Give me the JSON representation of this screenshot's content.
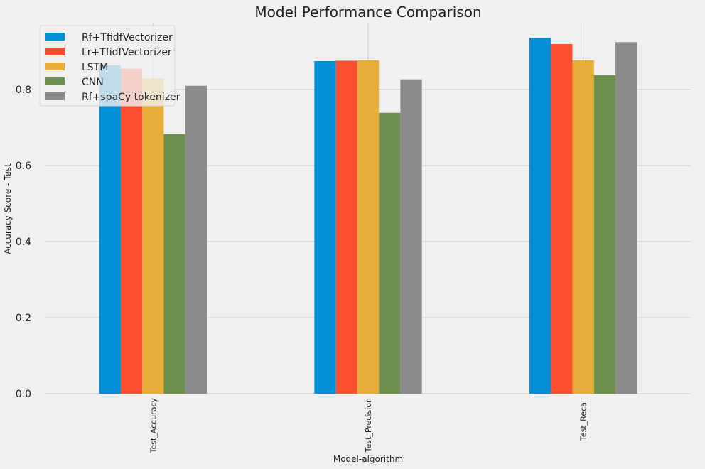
{
  "chart_data": {
    "type": "bar",
    "title": "Model Performance Comparison",
    "xlabel": "Model-algorithm",
    "ylabel": "Accuracy Score - Test",
    "categories": [
      "Test_Accuracy",
      "Test_Precision",
      "Test_Recall"
    ],
    "series": [
      {
        "name": "Rf+TfidfVectorizer",
        "color": "#008fd5",
        "values": [
          0.864,
          0.875,
          0.936
        ]
      },
      {
        "name": "Lr+TfidfVectorizer",
        "color": "#fc4f30",
        "values": [
          0.855,
          0.876,
          0.92
        ]
      },
      {
        "name": "LSTM",
        "color": "#e5ae38",
        "values": [
          0.83,
          0.877,
          0.877
        ]
      },
      {
        "name": "CNN",
        "color": "#6d904f",
        "values": [
          0.683,
          0.739,
          0.838
        ]
      },
      {
        "name": "Rf+spaCy tokenizer",
        "color": "#8b8b8b",
        "values": [
          0.81,
          0.827,
          0.925
        ]
      }
    ],
    "ylim": [
      0,
      0.976
    ],
    "yticks": [
      0.0,
      0.2,
      0.4,
      0.6,
      0.8
    ],
    "ytick_labels": [
      "0.0",
      "0.2",
      "0.4",
      "0.6",
      "0.8"
    ],
    "grid": true,
    "legend_position": "top-left"
  }
}
